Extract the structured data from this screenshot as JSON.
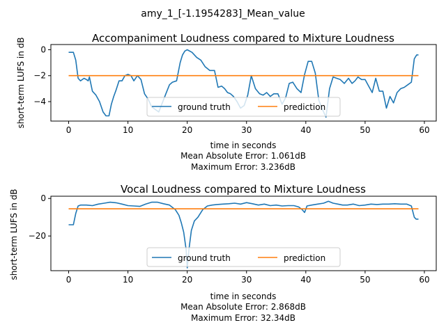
{
  "figure": {
    "suptitle": "amy_1_[-1.1954283]_Mean_value",
    "colors": {
      "ground_truth": "#1f77b4",
      "prediction": "#ff7f0e"
    }
  },
  "chart_data": [
    {
      "type": "line",
      "title": "Accompaniment Loudness compared to Mixture Loudness",
      "xlabel": "time in seconds",
      "ylabel": "short-term LUFS in dB",
      "xlim": [
        -3,
        62
      ],
      "ylim": [
        -5.5,
        0.4
      ],
      "xticks": [
        0,
        10,
        20,
        30,
        40,
        50,
        60
      ],
      "yticks": [
        0,
        -2,
        -4
      ],
      "grid": false,
      "legend": {
        "placement": "lower center",
        "entries": [
          "ground truth",
          "prediction"
        ]
      },
      "footer": [
        "Mean Absolute Error: 1.061dB",
        "Maximum Error: 3.236dB"
      ],
      "series": [
        {
          "name": "ground truth",
          "x": [
            0,
            0.8,
            1.2,
            1.6,
            2.0,
            2.6,
            3.0,
            3.3,
            3.5,
            4.0,
            4.6,
            5.2,
            5.8,
            6.3,
            6.8,
            7.2,
            7.6,
            8.0,
            8.5,
            9.0,
            9.5,
            10.0,
            10.5,
            11.0,
            11.6,
            12.2,
            12.8,
            13.4,
            14.0,
            14.6,
            15.2,
            15.8,
            16.4,
            17.0,
            17.5,
            18.2,
            18.8,
            19.2,
            19.6,
            20.0,
            20.8,
            21.6,
            22.3,
            23.0,
            23.8,
            24.6,
            25.2,
            25.8,
            26.3,
            26.8,
            27.3,
            27.8,
            28.4,
            29.0,
            29.6,
            30.2,
            30.8,
            31.5,
            32.2,
            32.8,
            33.4,
            34.0,
            34.6,
            35.3,
            36.0,
            36.6,
            37.2,
            37.8,
            38.5,
            39.2,
            39.8,
            40.4,
            41.0,
            41.6,
            42.2,
            42.8,
            43.4,
            44.0,
            44.6,
            45.2,
            45.8,
            46.5,
            47.2,
            47.8,
            48.3,
            48.8,
            49.4,
            50.0,
            50.6,
            51.2,
            51.8,
            52.4,
            53.0,
            53.6,
            54.2,
            54.8,
            55.4,
            56.0,
            56.6,
            57.2,
            57.8,
            58.3,
            58.7,
            59.0
          ],
          "y": [
            -0.2,
            -0.2,
            -0.8,
            -2.2,
            -2.4,
            -2.2,
            -2.3,
            -2.4,
            -2.1,
            -3.2,
            -3.5,
            -4.0,
            -4.8,
            -5.1,
            -5.1,
            -4.2,
            -3.6,
            -3.1,
            -2.4,
            -2.4,
            -2.0,
            -1.9,
            -2.0,
            -2.4,
            -2.0,
            -2.3,
            -3.4,
            -3.8,
            -4.4,
            -4.6,
            -4.8,
            -4.1,
            -3.4,
            -2.7,
            -2.5,
            -2.4,
            -1.0,
            -0.4,
            -0.1,
            0.0,
            -0.2,
            -0.6,
            -0.8,
            -1.3,
            -1.6,
            -1.6,
            -2.9,
            -2.8,
            -3.0,
            -3.3,
            -3.4,
            -3.6,
            -4.0,
            -4.5,
            -4.3,
            -3.5,
            -2.0,
            -3.0,
            -3.4,
            -3.5,
            -3.3,
            -3.6,
            -3.4,
            -3.4,
            -4.2,
            -3.7,
            -2.6,
            -2.5,
            -3.0,
            -3.3,
            -1.9,
            -0.9,
            -0.9,
            -1.8,
            -3.9,
            -4.6,
            -5.2,
            -3.0,
            -2.1,
            -2.2,
            -2.3,
            -2.6,
            -2.2,
            -2.6,
            -2.4,
            -2.1,
            -2.3,
            -2.3,
            -2.8,
            -3.3,
            -2.2,
            -3.2,
            -3.2,
            -4.5,
            -3.6,
            -4.1,
            -3.3,
            -3.0,
            -2.9,
            -2.7,
            -2.5,
            -0.7,
            -0.4,
            -0.4
          ]
        },
        {
          "name": "prediction",
          "x": [
            0,
            59
          ],
          "y": [
            -2.0,
            -2.0
          ]
        }
      ]
    },
    {
      "type": "line",
      "title": "Vocal Loudness compared to Mixture Loudness",
      "xlabel": "time in seconds",
      "ylabel": "short-term LUFS in dB",
      "xlim": [
        -3,
        62
      ],
      "ylim": [
        -38.5,
        1.2
      ],
      "xticks": [
        0,
        10,
        20,
        30,
        40,
        50,
        60
      ],
      "yticks": [
        0,
        -20
      ],
      "grid": false,
      "legend": {
        "placement": "lower center",
        "entries": [
          "ground truth",
          "prediction"
        ]
      },
      "footer": [
        "Mean Absolute Error: 2.868dB",
        "Maximum Error: 32.34dB"
      ],
      "series": [
        {
          "name": "ground truth",
          "x": [
            0,
            0.8,
            1.2,
            1.6,
            2.0,
            3.0,
            4.0,
            5.0,
            6.0,
            7.0,
            8.0,
            9.0,
            10.0,
            11.0,
            12.0,
            13.0,
            14.0,
            15.0,
            16.0,
            17.0,
            18.0,
            18.6,
            19.0,
            19.4,
            19.8,
            20.0,
            20.3,
            20.7,
            21.2,
            21.8,
            22.6,
            23.4,
            24.2,
            25.0,
            26.0,
            27.0,
            28.0,
            29.0,
            30.0,
            31.0,
            32.0,
            33.0,
            34.0,
            35.0,
            36.0,
            37.0,
            38.0,
            38.8,
            39.4,
            39.8,
            40.2,
            41.0,
            42.0,
            43.0,
            43.8,
            44.6,
            45.4,
            46.2,
            47.0,
            48.0,
            49.0,
            50.0,
            51.0,
            52.0,
            53.0,
            54.0,
            55.0,
            56.0,
            57.0,
            57.8,
            58.3,
            58.6,
            59.0
          ],
          "y": [
            -14.0,
            -14.0,
            -8.0,
            -4.0,
            -3.5,
            -3.5,
            -3.8,
            -3.0,
            -2.5,
            -2.0,
            -2.3,
            -3.0,
            -3.8,
            -4.0,
            -4.2,
            -3.0,
            -2.0,
            -2.0,
            -2.8,
            -3.5,
            -6.0,
            -9.0,
            -13.0,
            -18.0,
            -27.0,
            -37.0,
            -27.0,
            -17.0,
            -12.0,
            -10.0,
            -6.0,
            -4.0,
            -3.5,
            -3.2,
            -3.0,
            -2.8,
            -2.5,
            -3.0,
            -2.2,
            -2.8,
            -3.5,
            -3.0,
            -3.8,
            -3.5,
            -4.0,
            -3.8,
            -3.8,
            -4.5,
            -6.0,
            -7.5,
            -4.0,
            -3.5,
            -3.0,
            -2.5,
            -1.5,
            -2.5,
            -3.0,
            -3.5,
            -3.5,
            -3.0,
            -3.8,
            -3.5,
            -3.0,
            -3.2,
            -3.0,
            -3.0,
            -2.8,
            -3.0,
            -3.0,
            -4.0,
            -10.0,
            -11.0,
            -11.0
          ]
        },
        {
          "name": "prediction",
          "x": [
            0,
            59
          ],
          "y": [
            -5.5,
            -5.5
          ]
        }
      ]
    }
  ]
}
